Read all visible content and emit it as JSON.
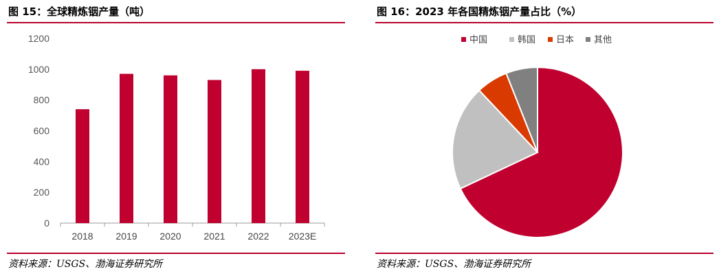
{
  "left": {
    "title": "图 15：全球精炼铟产量（吨）",
    "source": "资料来源：USGS、渤海证券研究所"
  },
  "right": {
    "title": "图 16：2023 年各国精炼铟产量占比（%）",
    "source": "资料来源：USGS、渤海证券研究所"
  },
  "colors": {
    "accent": "#b8002e",
    "bar": "#c0002f",
    "china": "#c0002f",
    "korea": "#c0c0c0",
    "japan": "#d93a00",
    "other": "#808080"
  },
  "chart_data": [
    {
      "type": "bar",
      "categories": [
        "2018",
        "2019",
        "2020",
        "2021",
        "2022",
        "2023E"
      ],
      "values": [
        740,
        970,
        960,
        930,
        1000,
        990
      ],
      "ylim": [
        0,
        1200
      ],
      "yticks": [
        "0",
        "200",
        "400",
        "600",
        "800",
        "1000",
        "1200"
      ],
      "grid": false,
      "legend": "none"
    },
    {
      "type": "pie",
      "labels": [
        "中国",
        "韩国",
        "日本",
        "其他"
      ],
      "values": [
        68,
        20,
        6,
        6
      ],
      "legend": "top"
    }
  ]
}
